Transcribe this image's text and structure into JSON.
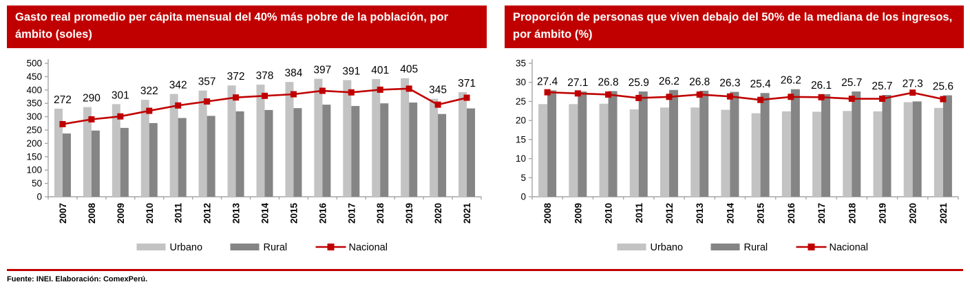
{
  "colors": {
    "header_bg": "#C00000",
    "header_text": "#FFFFFF",
    "urbano": "#C3C3C3",
    "rural": "#858585",
    "nacional": "#C00000",
    "axis": "#A6A6A6",
    "text": "#000000"
  },
  "footer": {
    "source": "Fuente: INEI. Elaboración: ComexPerú."
  },
  "charts": [
    {
      "title": "Gasto real promedio per cápita mensual del 40% más pobre de la población, por ámbito (soles)",
      "legend": [
        "Urbano",
        "Rural",
        "Nacional"
      ],
      "chart_data": {
        "type": "bar+line combo",
        "categories": [
          "2007",
          "2008",
          "2009",
          "2010",
          "2011",
          "2012",
          "2013",
          "2014",
          "2015",
          "2016",
          "2017",
          "2018",
          "2019",
          "2020",
          "2021"
        ],
        "series": [
          {
            "name": "Urbano",
            "kind": "bar",
            "color": "#C3C3C3",
            "values": [
              330,
              336,
              347,
              363,
              385,
              398,
              417,
              420,
              430,
              442,
              437,
              441,
              444,
              367,
              392
            ]
          },
          {
            "name": "Rural",
            "kind": "bar",
            "color": "#858585",
            "values": [
              237,
              248,
              258,
              276,
              295,
              303,
              320,
              325,
              332,
              345,
              340,
              350,
              353,
              310,
              331
            ]
          },
          {
            "name": "Nacional",
            "kind": "line",
            "color": "#C00000",
            "labeled": true,
            "values": [
              272,
              290,
              301,
              322,
              342,
              357,
              372,
              378,
              384,
              397,
              391,
              401,
              405,
              345,
              371
            ]
          }
        ],
        "ylim": [
          0,
          500
        ],
        "ytick_step": 50,
        "yticks": [
          0,
          50,
          100,
          150,
          200,
          250,
          300,
          350,
          400,
          450,
          500
        ],
        "grid": false,
        "legend_position": "bottom"
      }
    },
    {
      "title": "Proporción de personas que viven debajo del 50% de la mediana de los ingresos, por ámbito (%)",
      "legend": [
        "Urbano",
        "Rural",
        "Nacional"
      ],
      "chart_data": {
        "type": "bar+line combo",
        "categories": [
          "2008",
          "2009",
          "2010",
          "2011",
          "2012",
          "2013",
          "2014",
          "2015",
          "2016",
          "2017",
          "2018",
          "2019",
          "2020",
          "2021"
        ],
        "series": [
          {
            "name": "Urbano",
            "kind": "bar",
            "color": "#C3C3C3",
            "values": [
              24.3,
              24.3,
              24.4,
              22.9,
              23.4,
              23.4,
              22.8,
              21.9,
              22.4,
              22.3,
              22.5,
              22.4,
              24.8,
              23.3
            ]
          },
          {
            "name": "Rural",
            "kind": "bar",
            "color": "#858585",
            "values": [
              27.9,
              27.6,
              27.7,
              27.6,
              28.0,
              27.8,
              27.5,
              27.2,
              28.2,
              26.9,
              27.6,
              26.7,
              25.0,
              26.6
            ]
          },
          {
            "name": "Nacional",
            "kind": "line",
            "color": "#C00000",
            "labeled": true,
            "values": [
              27.4,
              27.1,
              26.8,
              25.9,
              26.2,
              26.8,
              26.3,
              25.4,
              26.2,
              26.1,
              25.7,
              25.7,
              27.3,
              25.6
            ]
          }
        ],
        "ylim": [
          0,
          35
        ],
        "ytick_step": 5,
        "yticks": [
          0,
          5,
          10,
          15,
          20,
          25,
          30,
          35
        ],
        "grid": false,
        "legend_position": "bottom"
      }
    }
  ]
}
